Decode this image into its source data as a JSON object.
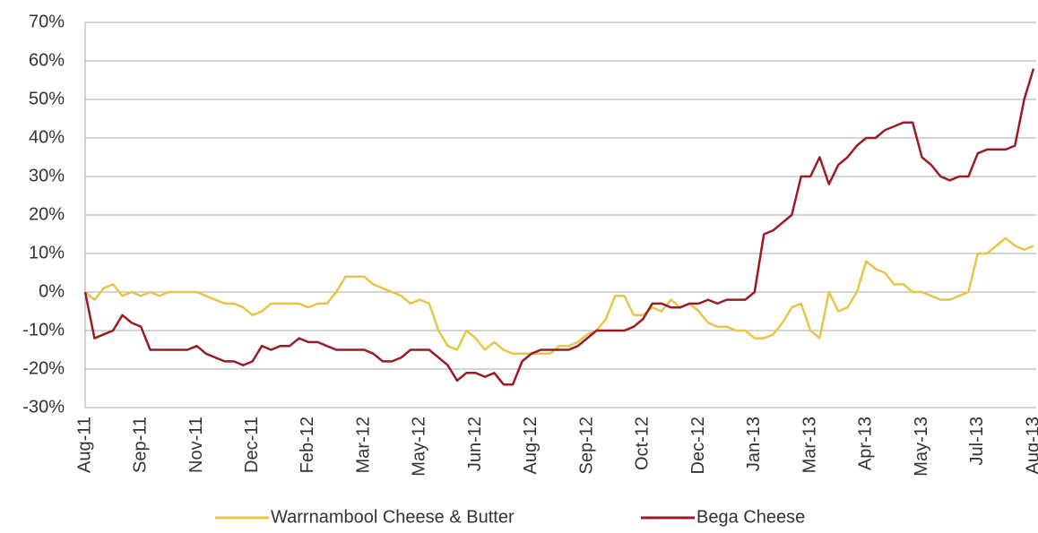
{
  "chart_data": {
    "type": "line",
    "categories": [
      "Aug-11",
      null,
      null,
      null,
      null,
      null,
      "Sep-11",
      null,
      null,
      null,
      null,
      null,
      "Nov-11",
      null,
      null,
      null,
      null,
      null,
      "Dec-11",
      null,
      null,
      null,
      null,
      null,
      "Feb-12",
      null,
      null,
      null,
      null,
      null,
      "Mar-12",
      null,
      null,
      null,
      null,
      null,
      "May-12",
      null,
      null,
      null,
      null,
      null,
      "Jun-12",
      null,
      null,
      null,
      null,
      null,
      "Aug-12",
      null,
      null,
      null,
      null,
      null,
      "Sep-12",
      null,
      null,
      null,
      null,
      null,
      "Oct-12",
      null,
      null,
      null,
      null,
      null,
      "Dec-12",
      null,
      null,
      null,
      null,
      null,
      "Jan-13",
      null,
      null,
      null,
      null,
      null,
      "Mar-13",
      null,
      null,
      null,
      null,
      null,
      "Apr-13",
      null,
      null,
      null,
      null,
      null,
      "May-13",
      null,
      null,
      null,
      null,
      null,
      "Jul-13",
      null,
      null,
      null,
      null,
      null,
      "Aug-13"
    ],
    "series": [
      {
        "name": "Warrnambool Cheese & Butter",
        "color": "#e8c547",
        "values": [
          0,
          -2,
          1,
          2,
          -1,
          0,
          -1,
          0,
          -1,
          0,
          0,
          0,
          0,
          -1,
          -2,
          -3,
          -3,
          -4,
          -6,
          -5,
          -3,
          -3,
          -3,
          -3,
          -4,
          -3,
          -3,
          0,
          4,
          4,
          4,
          2,
          1,
          0,
          -1,
          -3,
          -2,
          -3,
          -10,
          -14,
          -15,
          -10,
          -12,
          -15,
          -13,
          -15,
          -16,
          -16,
          -16,
          -16,
          -16,
          -14,
          -14,
          -13,
          -11,
          -10,
          -7,
          -1,
          -1,
          -6,
          -6,
          -4,
          -5,
          -2,
          -4,
          -3,
          -5,
          -8,
          -9,
          -9,
          -10,
          -10,
          -12,
          -12,
          -11,
          -8,
          -4,
          -3,
          -10,
          -12,
          0,
          -5,
          -4,
          0,
          8,
          6,
          5,
          2,
          2,
          0,
          0,
          -1,
          -2,
          -2,
          -1,
          0,
          10,
          10,
          12,
          14,
          12,
          11,
          12
        ]
      },
      {
        "name": "Bega Cheese",
        "color": "#9b1b24",
        "values": [
          0,
          -12,
          -11,
          -10,
          -6,
          -8,
          -9,
          -15,
          -15,
          -15,
          -15,
          -15,
          -14,
          -16,
          -17,
          -18,
          -18,
          -19,
          -18,
          -14,
          -15,
          -14,
          -14,
          -12,
          -13,
          -13,
          -14,
          -15,
          -15,
          -15,
          -15,
          -16,
          -18,
          -18,
          -17,
          -15,
          -15,
          -15,
          -17,
          -19,
          -23,
          -21,
          -21,
          -22,
          -21,
          -24,
          -24,
          -18,
          -16,
          -15,
          -15,
          -15,
          -15,
          -14,
          -12,
          -10,
          -10,
          -10,
          -10,
          -9,
          -7,
          -3,
          -3,
          -4,
          -4,
          -3,
          -3,
          -2,
          -3,
          -2,
          -2,
          -2,
          0,
          15,
          16,
          18,
          20,
          30,
          30,
          35,
          28,
          33,
          35,
          38,
          40,
          40,
          42,
          43,
          44,
          44,
          35,
          33,
          30,
          29,
          30,
          30,
          36,
          37,
          37,
          37,
          38,
          50,
          58
        ]
      }
    ],
    "ylim": [
      -30,
      70
    ],
    "yticks": [
      {
        "value": -30,
        "label": "-30%"
      },
      {
        "value": -20,
        "label": "-20%"
      },
      {
        "value": -10,
        "label": "-10%"
      },
      {
        "value": 0,
        "label": "0%"
      },
      {
        "value": 10,
        "label": "10%"
      },
      {
        "value": 20,
        "label": "20%"
      },
      {
        "value": 30,
        "label": "30%"
      },
      {
        "value": 40,
        "label": "40%"
      },
      {
        "value": 50,
        "label": "50%"
      },
      {
        "value": 60,
        "label": "60%"
      },
      {
        "value": 70,
        "label": "70%"
      }
    ],
    "grid": true
  }
}
